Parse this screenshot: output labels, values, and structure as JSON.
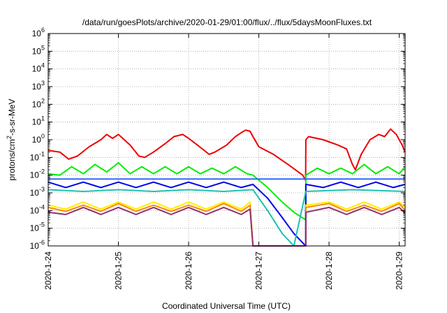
{
  "chart_data": {
    "type": "line",
    "title": "/data/run/goesPlots/archive/2020-01-29/01:00/flux/../flux/5daysMoonFluxes.txt",
    "xlabel": "Coordinated Universal Time (UTC)",
    "ylabel": {
      "prefix": "protons/cm",
      "sup": "2",
      "suffix": "-s-sr-MeV"
    },
    "y_scale": "log",
    "ylim": [
      1e-06,
      1000000.0
    ],
    "xlim": [
      "2020-01-24",
      "2020-01-29T02:00"
    ],
    "grid": true,
    "legend": "none",
    "x_ticks": [
      {
        "x": "2020-01-24",
        "label": "2020-1-24"
      },
      {
        "x": "2020-01-25",
        "label": "2020-1-25"
      },
      {
        "x": "2020-01-26",
        "label": "2020-1-26"
      },
      {
        "x": "2020-01-27",
        "label": "2020-1-27"
      },
      {
        "x": "2020-01-28",
        "label": "2020-1-28"
      },
      {
        "x": "2020-01-29",
        "label": "2020-1-29"
      }
    ],
    "y_ticks": [
      {
        "exp": -6
      },
      {
        "exp": -5
      },
      {
        "exp": -4
      },
      {
        "exp": -3
      },
      {
        "exp": -2
      },
      {
        "exp": -1
      },
      {
        "exp": 0
      },
      {
        "exp": 1
      },
      {
        "exp": 2
      },
      {
        "exp": 3
      },
      {
        "exp": 4
      },
      {
        "exp": 5
      },
      {
        "exp": 6
      }
    ],
    "series": [
      {
        "color": "#ee0000",
        "points": [
          [
            "2020-01-24T00:00",
            0.25
          ],
          [
            "2020-01-24T04:00",
            0.2
          ],
          [
            "2020-01-24T07:00",
            0.08
          ],
          [
            "2020-01-24T10:00",
            0.12
          ],
          [
            "2020-01-24T14:00",
            0.4
          ],
          [
            "2020-01-24T18:00",
            1.0
          ],
          [
            "2020-01-24T20:00",
            2.0
          ],
          [
            "2020-01-24T22:00",
            1.2
          ],
          [
            "2020-01-25T00:00",
            2.0
          ],
          [
            "2020-01-25T02:00",
            1.0
          ],
          [
            "2020-01-25T04:00",
            0.5
          ],
          [
            "2020-01-25T07:00",
            0.12
          ],
          [
            "2020-01-25T09:00",
            0.1
          ],
          [
            "2020-01-25T12:00",
            0.2
          ],
          [
            "2020-01-25T16:00",
            0.6
          ],
          [
            "2020-01-25T19:00",
            1.5
          ],
          [
            "2020-01-25T22:00",
            2.0
          ],
          [
            "2020-01-26T00:00",
            1.2
          ],
          [
            "2020-01-26T03:00",
            0.5
          ],
          [
            "2020-01-26T07:00",
            0.15
          ],
          [
            "2020-01-26T09:00",
            0.2
          ],
          [
            "2020-01-26T13:00",
            0.5
          ],
          [
            "2020-01-26T16:00",
            1.5
          ],
          [
            "2020-01-26T18:00",
            2.5
          ],
          [
            "2020-01-26T19:30",
            3.5
          ],
          [
            "2020-01-26T21:00",
            3.0
          ],
          [
            "2020-01-26T22:00",
            1.5
          ],
          [
            "2020-01-27T00:00",
            0.4
          ],
          [
            "2020-01-27T05:00",
            0.15
          ],
          [
            "2020-01-27T10:00",
            0.04
          ],
          [
            "2020-01-27T15:00",
            0.01
          ],
          [
            "2020-01-27T16:00",
            0.005
          ],
          [
            "2020-01-27T16:05",
            1.0
          ],
          [
            "2020-01-27T17:00",
            1.5
          ],
          [
            "2020-01-27T22:00",
            1.0
          ],
          [
            "2020-01-28T03:00",
            0.5
          ],
          [
            "2020-01-28T06:00",
            0.3
          ],
          [
            "2020-01-28T08:00",
            0.04
          ],
          [
            "2020-01-28T09:00",
            0.02
          ],
          [
            "2020-01-28T11:00",
            0.15
          ],
          [
            "2020-01-28T14:00",
            1.0
          ],
          [
            "2020-01-28T17:00",
            2.0
          ],
          [
            "2020-01-28T19:00",
            1.5
          ],
          [
            "2020-01-28T21:00",
            4.0
          ],
          [
            "2020-01-28T23:00",
            2.0
          ],
          [
            "2020-01-29T01:00",
            0.5
          ],
          [
            "2020-01-29T02:00",
            0.2
          ]
        ]
      },
      {
        "color": "#00ee00",
        "points": [
          [
            "2020-01-24T00:00",
            0.012
          ],
          [
            "2020-01-24T04:00",
            0.01
          ],
          [
            "2020-01-24T08:00",
            0.03
          ],
          [
            "2020-01-24T12:00",
            0.012
          ],
          [
            "2020-01-24T16:00",
            0.04
          ],
          [
            "2020-01-24T20:00",
            0.015
          ],
          [
            "2020-01-25T00:00",
            0.05
          ],
          [
            "2020-01-25T04:00",
            0.012
          ],
          [
            "2020-01-25T08:00",
            0.03
          ],
          [
            "2020-01-25T12:00",
            0.012
          ],
          [
            "2020-01-25T16:00",
            0.03
          ],
          [
            "2020-01-25T20:00",
            0.012
          ],
          [
            "2020-01-26T00:00",
            0.03
          ],
          [
            "2020-01-26T04:00",
            0.012
          ],
          [
            "2020-01-26T08:00",
            0.025
          ],
          [
            "2020-01-26T12:00",
            0.012
          ],
          [
            "2020-01-26T16:00",
            0.03
          ],
          [
            "2020-01-26T20:00",
            0.012
          ],
          [
            "2020-01-26T22:00",
            0.01
          ],
          [
            "2020-01-27T03:00",
            0.002
          ],
          [
            "2020-01-27T08:00",
            0.0003
          ],
          [
            "2020-01-27T12:00",
            8e-05
          ],
          [
            "2020-01-27T16:00",
            3e-05
          ],
          [
            "2020-01-27T16:05",
            0.01
          ],
          [
            "2020-01-27T20:00",
            0.025
          ],
          [
            "2020-01-28T00:00",
            0.012
          ],
          [
            "2020-01-28T04:00",
            0.025
          ],
          [
            "2020-01-28T08:00",
            0.012
          ],
          [
            "2020-01-28T12:00",
            0.04
          ],
          [
            "2020-01-28T16:00",
            0.012
          ],
          [
            "2020-01-28T20:00",
            0.03
          ],
          [
            "2020-01-29T00:00",
            0.012
          ],
          [
            "2020-01-29T02:00",
            0.03
          ]
        ]
      },
      {
        "color": "#0000ee",
        "points": [
          [
            "2020-01-24T00:00",
            0.004
          ],
          [
            "2020-01-24T06:00",
            0.002
          ],
          [
            "2020-01-24T12:00",
            0.004
          ],
          [
            "2020-01-24T18:00",
            0.002
          ],
          [
            "2020-01-25T00:00",
            0.004
          ],
          [
            "2020-01-25T06:00",
            0.002
          ],
          [
            "2020-01-25T12:00",
            0.004
          ],
          [
            "2020-01-25T18:00",
            0.002
          ],
          [
            "2020-01-26T00:00",
            0.004
          ],
          [
            "2020-01-26T06:00",
            0.002
          ],
          [
            "2020-01-26T12:00",
            0.004
          ],
          [
            "2020-01-26T18:00",
            0.002
          ],
          [
            "2020-01-26T22:00",
            0.003
          ],
          [
            "2020-01-27T03:00",
            0.0005
          ],
          [
            "2020-01-27T08:00",
            4e-05
          ],
          [
            "2020-01-27T12:00",
            5e-06
          ],
          [
            "2020-01-27T16:00",
            1e-06
          ],
          [
            "2020-01-27T16:05",
            0.003
          ],
          [
            "2020-01-27T22:00",
            0.002
          ],
          [
            "2020-01-28T04:00",
            0.004
          ],
          [
            "2020-01-28T10:00",
            0.002
          ],
          [
            "2020-01-28T16:00",
            0.004
          ],
          [
            "2020-01-28T22:00",
            0.002
          ],
          [
            "2020-01-29T02:00",
            0.003
          ]
        ]
      },
      {
        "color": "#3366ff",
        "points": [
          [
            "2020-01-24T00:00",
            0.006
          ],
          [
            "2020-01-25T00:00",
            0.006
          ],
          [
            "2020-01-26T00:00",
            0.006
          ],
          [
            "2020-01-26T22:00",
            0.006
          ],
          [
            "2020-01-27T16:00",
            0.006
          ],
          [
            "2020-01-27T16:05",
            0.006
          ],
          [
            "2020-01-28T12:00",
            0.006
          ],
          [
            "2020-01-29T02:00",
            0.006
          ]
        ]
      },
      {
        "color": "#20c0b0",
        "points": [
          [
            "2020-01-24T00:00",
            0.0015
          ],
          [
            "2020-01-24T12:00",
            0.0012
          ],
          [
            "2020-01-25T00:00",
            0.0015
          ],
          [
            "2020-01-25T12:00",
            0.0012
          ],
          [
            "2020-01-26T00:00",
            0.0015
          ],
          [
            "2020-01-26T12:00",
            0.0012
          ],
          [
            "2020-01-26T22:00",
            0.0015
          ],
          [
            "2020-01-27T03:00",
            0.0001
          ],
          [
            "2020-01-27T08:00",
            5e-06
          ],
          [
            "2020-01-27T12:00",
            1e-06
          ],
          [
            "2020-01-27T16:05",
            0.0012
          ],
          [
            "2020-01-28T08:00",
            0.0015
          ],
          [
            "2020-01-29T02:00",
            0.0012
          ]
        ]
      },
      {
        "color": "#ffee00",
        "points": [
          [
            "2020-01-24T00:00",
            0.0002
          ],
          [
            "2020-01-24T06:00",
            0.00012
          ],
          [
            "2020-01-24T12:00",
            0.0003
          ],
          [
            "2020-01-24T18:00",
            0.00012
          ],
          [
            "2020-01-25T00:00",
            0.0003
          ],
          [
            "2020-01-25T06:00",
            0.00012
          ],
          [
            "2020-01-25T12:00",
            0.0003
          ],
          [
            "2020-01-25T18:00",
            0.00012
          ],
          [
            "2020-01-26T00:00",
            0.0003
          ],
          [
            "2020-01-26T06:00",
            0.00012
          ],
          [
            "2020-01-26T12:00",
            0.0003
          ],
          [
            "2020-01-26T18:00",
            0.00012
          ],
          [
            "2020-01-26T21:00",
            0.0003
          ],
          [
            "2020-01-26T22:00",
            1e-06
          ],
          [
            "2020-01-27T16:05",
            1e-06
          ],
          [
            "2020-01-27T16:06",
            0.0002
          ],
          [
            "2020-01-28T00:00",
            0.0003
          ],
          [
            "2020-01-28T06:00",
            0.00012
          ],
          [
            "2020-01-28T12:00",
            0.0003
          ],
          [
            "2020-01-28T18:00",
            0.00012
          ],
          [
            "2020-01-29T00:00",
            0.0003
          ],
          [
            "2020-01-29T02:00",
            0.00015
          ]
        ]
      },
      {
        "color": "#ff8800",
        "points": [
          [
            "2020-01-24T00:00",
            0.00015
          ],
          [
            "2020-01-24T06:00",
            9e-05
          ],
          [
            "2020-01-24T12:00",
            0.0002
          ],
          [
            "2020-01-24T18:00",
            9e-05
          ],
          [
            "2020-01-25T00:00",
            0.00025
          ],
          [
            "2020-01-25T06:00",
            9e-05
          ],
          [
            "2020-01-25T12:00",
            0.0002
          ],
          [
            "2020-01-25T18:00",
            9e-05
          ],
          [
            "2020-01-26T00:00",
            0.0002
          ],
          [
            "2020-01-26T06:00",
            9e-05
          ],
          [
            "2020-01-26T12:00",
            0.00025
          ],
          [
            "2020-01-26T18:00",
            9e-05
          ],
          [
            "2020-01-26T21:00",
            0.0002
          ],
          [
            "2020-01-26T22:00",
            1e-06
          ],
          [
            "2020-01-27T16:05",
            1e-06
          ],
          [
            "2020-01-27T16:06",
            0.00015
          ],
          [
            "2020-01-28T00:00",
            0.00025
          ],
          [
            "2020-01-28T06:00",
            9e-05
          ],
          [
            "2020-01-28T12:00",
            0.0002
          ],
          [
            "2020-01-28T18:00",
            9e-05
          ],
          [
            "2020-01-29T00:00",
            0.00025
          ],
          [
            "2020-01-29T02:00",
            0.0001
          ]
        ]
      },
      {
        "color": "#903070",
        "points": [
          [
            "2020-01-24T00:00",
            8e-05
          ],
          [
            "2020-01-24T06:00",
            6e-05
          ],
          [
            "2020-01-24T12:00",
            0.00015
          ],
          [
            "2020-01-24T18:00",
            6e-05
          ],
          [
            "2020-01-25T00:00",
            0.00015
          ],
          [
            "2020-01-25T06:00",
            6e-05
          ],
          [
            "2020-01-25T12:00",
            0.00015
          ],
          [
            "2020-01-25T18:00",
            6e-05
          ],
          [
            "2020-01-26T00:00",
            0.00015
          ],
          [
            "2020-01-26T06:00",
            6e-05
          ],
          [
            "2020-01-26T12:00",
            0.00015
          ],
          [
            "2020-01-26T18:00",
            6e-05
          ],
          [
            "2020-01-26T21:00",
            0.00012
          ],
          [
            "2020-01-26T22:00",
            1e-06
          ],
          [
            "2020-01-27T16:05",
            1e-06
          ],
          [
            "2020-01-27T16:06",
            8e-05
          ],
          [
            "2020-01-28T00:00",
            0.00015
          ],
          [
            "2020-01-28T06:00",
            6e-05
          ],
          [
            "2020-01-28T12:00",
            0.00015
          ],
          [
            "2020-01-28T18:00",
            6e-05
          ],
          [
            "2020-01-29T00:00",
            0.00015
          ],
          [
            "2020-01-29T02:00",
            7e-05
          ]
        ]
      }
    ]
  }
}
